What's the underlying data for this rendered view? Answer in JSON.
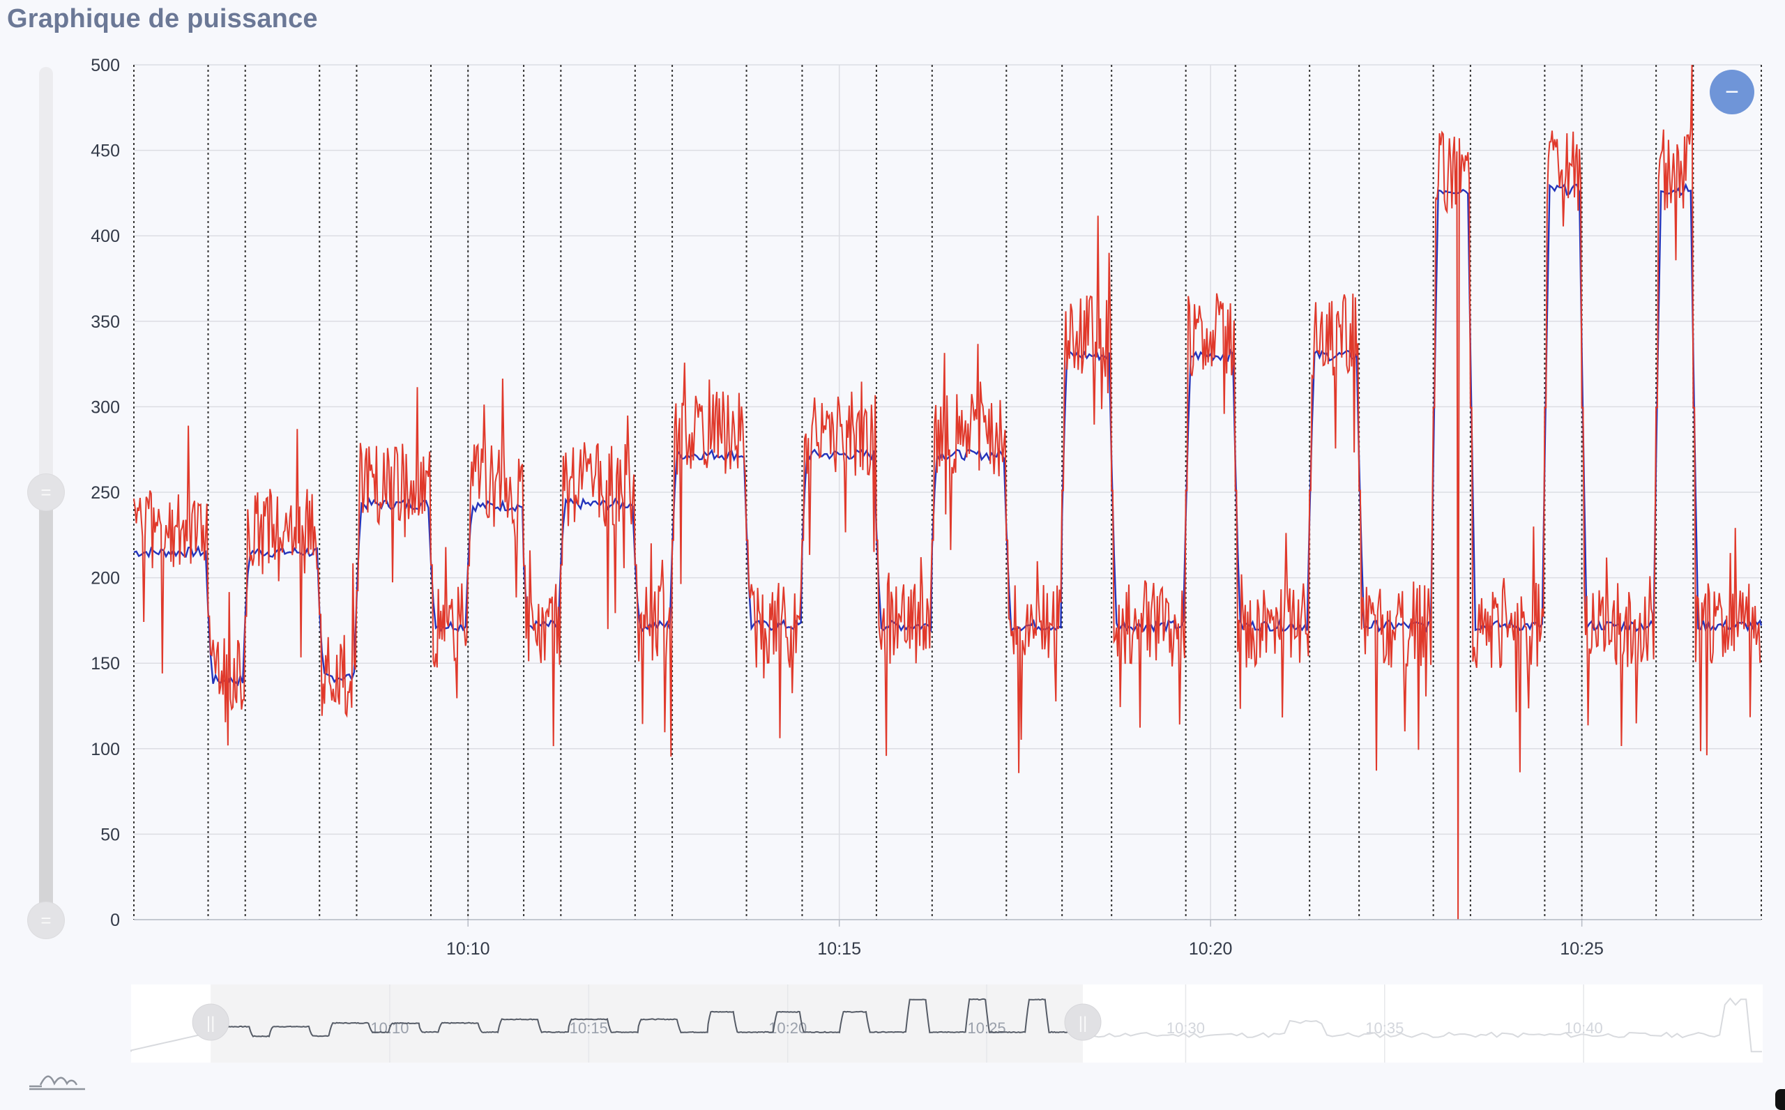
{
  "title": "Graphique de puissance",
  "controls": {
    "zoom_out_symbol": "−",
    "handle_symbol": "=",
    "pause_symbol": "||"
  },
  "colors": {
    "series_target": "#2233bb",
    "series_power": "#e0392b",
    "grid": "#dcdde3",
    "lap_lines": "#333333",
    "accent_button": "#6f95d8"
  },
  "chart_data": {
    "type": "line",
    "title": "Graphique de puissance",
    "xlabel": "",
    "ylabel": "",
    "x_unit": "time",
    "xlim": [
      "10:05:30",
      "10:27:25"
    ],
    "ylim": [
      0,
      500
    ],
    "y_ticks": [
      0,
      50,
      100,
      150,
      200,
      250,
      300,
      350,
      400,
      450,
      500
    ],
    "x_ticks": [
      "10:10",
      "10:15",
      "10:20",
      "10:25"
    ],
    "grid": true,
    "lap_marker_times": [
      "10:06:30",
      "10:07:00",
      "10:08:00",
      "10:08:30",
      "10:09:30",
      "10:10:00",
      "10:10:45",
      "10:11:15",
      "10:12:15",
      "10:12:45",
      "10:13:45",
      "10:14:30",
      "10:15:30",
      "10:16:15",
      "10:17:15",
      "10:18:00",
      "10:18:40",
      "10:19:40",
      "10:20:20",
      "10:21:20",
      "10:22:00",
      "10:23:00",
      "10:23:30",
      "10:24:30",
      "10:25:00",
      "10:26:00",
      "10:26:30"
    ],
    "series": [
      {
        "key": "target",
        "segments": [
          {
            "start": "10:05:30",
            "end": "10:06:30",
            "value": 215
          },
          {
            "start": "10:06:30",
            "end": "10:07:00",
            "value": 140
          },
          {
            "start": "10:07:00",
            "end": "10:08:00",
            "value": 215
          },
          {
            "start": "10:08:00",
            "end": "10:08:30",
            "value": 142
          },
          {
            "start": "10:08:30",
            "end": "10:09:30",
            "value": 243
          },
          {
            "start": "10:09:30",
            "end": "10:10:00",
            "value": 172
          },
          {
            "start": "10:10:00",
            "end": "10:10:45",
            "value": 242
          },
          {
            "start": "10:10:45",
            "end": "10:11:15",
            "value": 172
          },
          {
            "start": "10:11:15",
            "end": "10:12:15",
            "value": 243
          },
          {
            "start": "10:12:15",
            "end": "10:12:45",
            "value": 172
          },
          {
            "start": "10:12:45",
            "end": "10:13:45",
            "value": 272
          },
          {
            "start": "10:13:45",
            "end": "10:14:30",
            "value": 172
          },
          {
            "start": "10:14:30",
            "end": "10:15:30",
            "value": 272
          },
          {
            "start": "10:15:30",
            "end": "10:16:15",
            "value": 172
          },
          {
            "start": "10:16:15",
            "end": "10:17:15",
            "value": 272
          },
          {
            "start": "10:17:15",
            "end": "10:18:00",
            "value": 172
          },
          {
            "start": "10:18:00",
            "end": "10:18:40",
            "value": 330
          },
          {
            "start": "10:18:40",
            "end": "10:19:40",
            "value": 172
          },
          {
            "start": "10:19:40",
            "end": "10:20:20",
            "value": 330
          },
          {
            "start": "10:20:20",
            "end": "10:21:20",
            "value": 172
          },
          {
            "start": "10:21:20",
            "end": "10:22:00",
            "value": 330
          },
          {
            "start": "10:22:00",
            "end": "10:23:00",
            "value": 172
          },
          {
            "start": "10:23:00",
            "end": "10:23:30",
            "value": 427
          },
          {
            "start": "10:23:30",
            "end": "10:24:30",
            "value": 172
          },
          {
            "start": "10:24:30",
            "end": "10:25:00",
            "value": 427
          },
          {
            "start": "10:25:00",
            "end": "10:26:00",
            "value": 172
          },
          {
            "start": "10:26:00",
            "end": "10:26:30",
            "value": 427
          },
          {
            "start": "10:26:30",
            "end": "10:27:25",
            "value": 172
          }
        ]
      },
      {
        "key": "power",
        "noise": "high-frequency fluctuation around target, roughly ±30 W",
        "spikes": [
          {
            "time": "10:23:05",
            "value": 460
          },
          {
            "time": "10:23:20",
            "value": 0
          },
          {
            "time": "10:24:35",
            "value": 455
          },
          {
            "time": "10:26:05",
            "value": 450
          }
        ]
      }
    ],
    "navigator": {
      "x_ticks": [
        "10:10",
        "10:15",
        "10:20",
        "10:25",
        "10:30",
        "10:35",
        "10:40"
      ],
      "selected_range": [
        "10:05:30",
        "10:27:25"
      ]
    }
  }
}
